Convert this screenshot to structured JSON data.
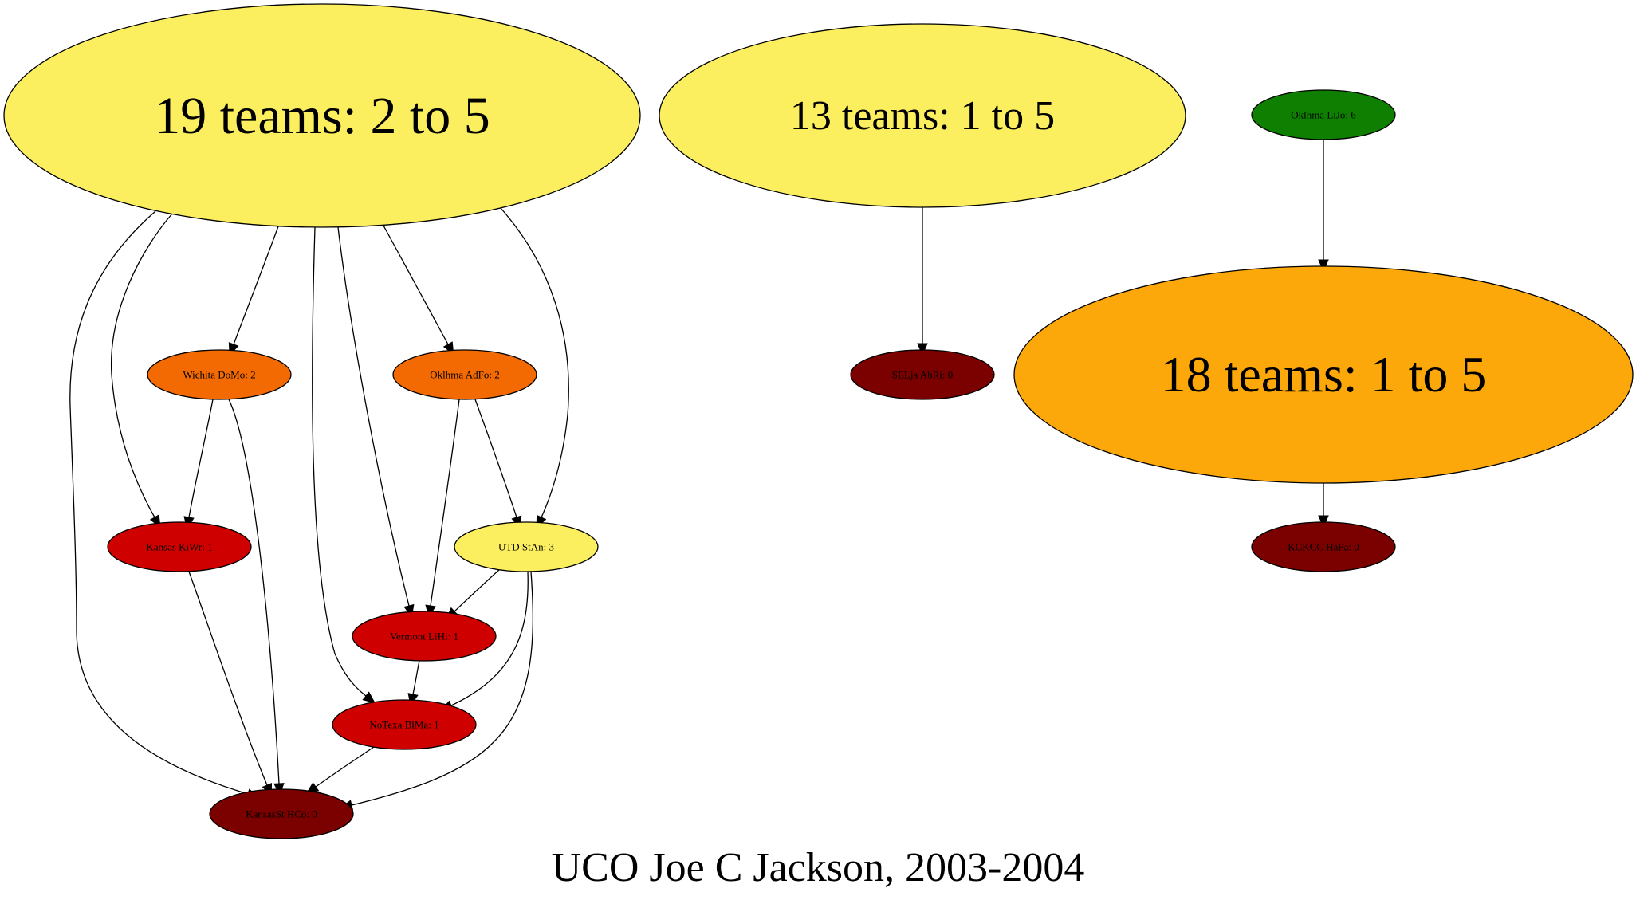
{
  "caption": "UCO Joe C Jackson, 2003-2004",
  "colors": {
    "yellow": "#FCEF5F",
    "orange_big": "#FCA70A",
    "orange": "#F36A03",
    "red": "#CE0000",
    "dark_red": "#7B0000",
    "green": "#0E7F00"
  },
  "nodes": [
    {
      "id": "g19",
      "label": "19 teams: 2 to 5",
      "color": "#FCEF5F"
    },
    {
      "id": "g13",
      "label": "13 teams: 1 to 5",
      "color": "#FCEF5F"
    },
    {
      "id": "oklijo",
      "label": "Oklhma LiJo: 6",
      "color": "#0E7F00"
    },
    {
      "id": "g18",
      "label": "18 teams: 1 to 5",
      "color": "#FCA70A"
    },
    {
      "id": "wichita",
      "label": "Wichita DoMo: 2",
      "color": "#F36A03"
    },
    {
      "id": "okladfo",
      "label": "Oklhma AdFo: 2",
      "color": "#F36A03"
    },
    {
      "id": "selja",
      "label": "SELja AbRi: 0",
      "color": "#7B0000"
    },
    {
      "id": "kansas",
      "label": "Kansas KiWr: 1",
      "color": "#CE0000"
    },
    {
      "id": "utd",
      "label": "UTD StAn: 3",
      "color": "#FCEF5F"
    },
    {
      "id": "kckcc",
      "label": "KCKCC HaPa: 0",
      "color": "#7B0000"
    },
    {
      "id": "vermont",
      "label": "Vermont LiHi: 1",
      "color": "#CE0000"
    },
    {
      "id": "notexa",
      "label": "NoTexa BlMa: 1",
      "color": "#CE0000"
    },
    {
      "id": "kansasst",
      "label": "KansasSt HCo: 0",
      "color": "#7B0000"
    }
  ],
  "edges": [
    {
      "from": "g19",
      "to": "wichita"
    },
    {
      "from": "g19",
      "to": "okladfo"
    },
    {
      "from": "g19",
      "to": "kansas"
    },
    {
      "from": "g19",
      "to": "utd"
    },
    {
      "from": "g19",
      "to": "vermont"
    },
    {
      "from": "g19",
      "to": "notexa"
    },
    {
      "from": "g19",
      "to": "kansasst"
    },
    {
      "from": "wichita",
      "to": "kansas"
    },
    {
      "from": "wichita",
      "to": "kansasst"
    },
    {
      "from": "okladfo",
      "to": "vermont"
    },
    {
      "from": "okladfo",
      "to": "utd"
    },
    {
      "from": "utd",
      "to": "vermont"
    },
    {
      "from": "utd",
      "to": "notexa"
    },
    {
      "from": "utd",
      "to": "kansasst"
    },
    {
      "from": "kansas",
      "to": "kansasst"
    },
    {
      "from": "vermont",
      "to": "notexa"
    },
    {
      "from": "notexa",
      "to": "kansasst"
    },
    {
      "from": "g13",
      "to": "selja"
    },
    {
      "from": "oklijo",
      "to": "g18"
    },
    {
      "from": "g18",
      "to": "kckcc"
    }
  ]
}
